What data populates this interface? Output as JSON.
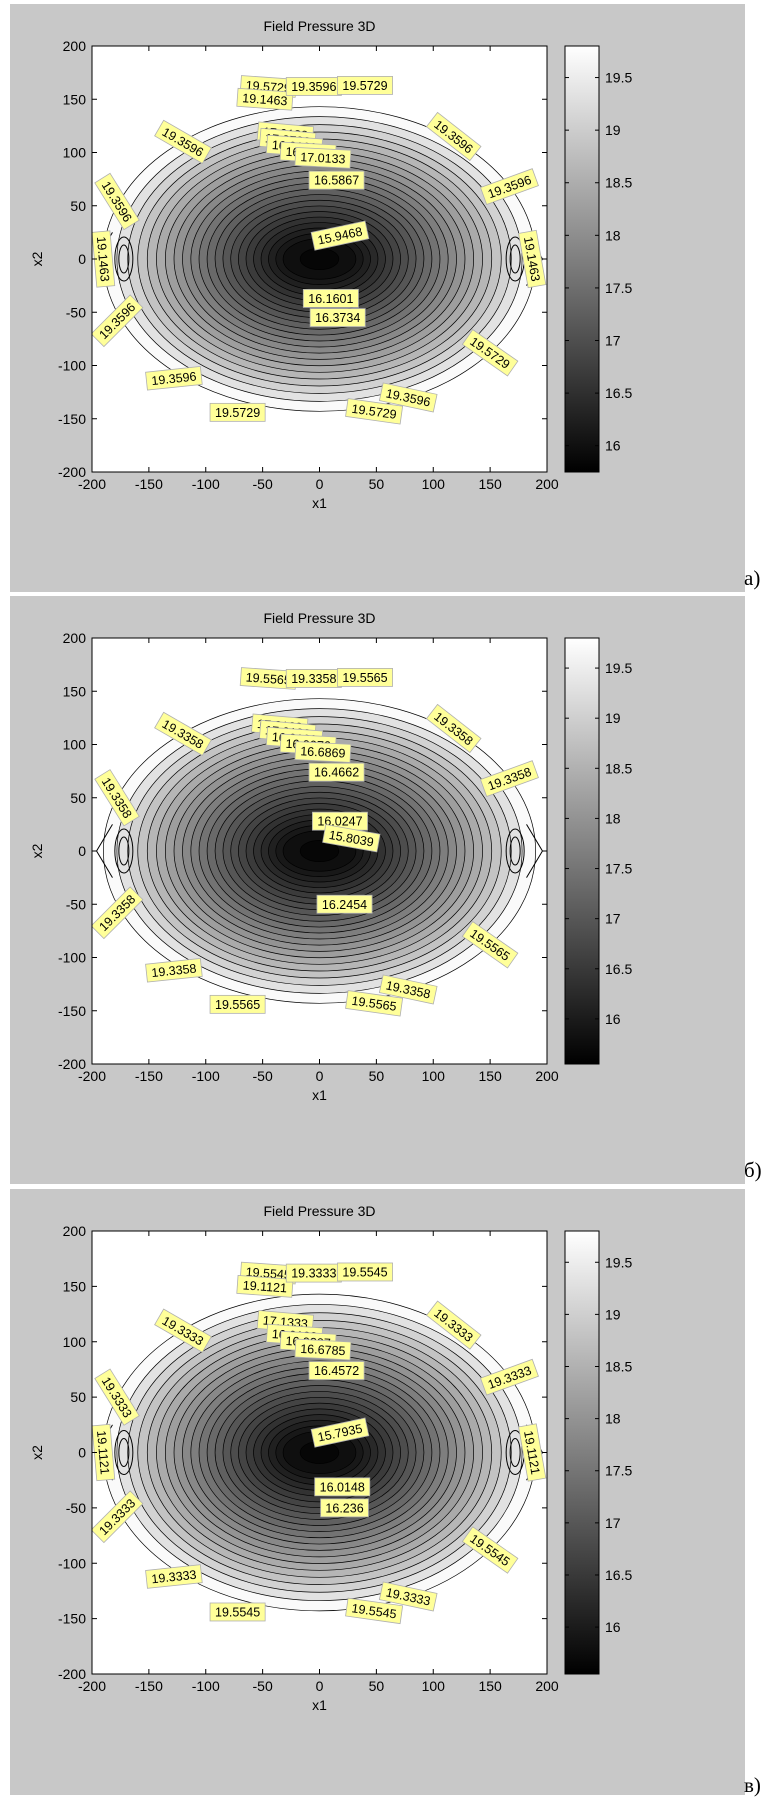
{
  "chart_data": [
    {
      "type": "contour",
      "title": "Field Pressure 3D",
      "xlabel": "x1",
      "ylabel": "x2",
      "xlim": [
        -200,
        200
      ],
      "ylim": [
        -200,
        200
      ],
      "xticks": [
        -200,
        -150,
        -100,
        -50,
        0,
        50,
        100,
        150,
        200
      ],
      "yticks": [
        -200,
        -150,
        -100,
        -50,
        0,
        50,
        100,
        150,
        200
      ],
      "colorbar": {
        "range": [
          15.75,
          19.8
        ],
        "ticks": [
          16,
          16.5,
          17,
          17.5,
          18,
          18.5,
          19,
          19.5
        ]
      },
      "min_level": 15.9468,
      "max_level": 19.5729,
      "panel_letter": "а)",
      "contour_labels": [
        {
          "text": "19.5729",
          "x": -45,
          "y": 162,
          "angle": -4
        },
        {
          "text": "19.1463",
          "x": -48,
          "y": 150,
          "angle": -4
        },
        {
          "text": "19.3596",
          "x": -5,
          "y": 162,
          "angle": 0
        },
        {
          "text": "19.5729",
          "x": 40,
          "y": 163,
          "angle": 0
        },
        {
          "text": "17.9133",
          "x": -30,
          "y": 118,
          "angle": -5
        },
        {
          "text": "17.3733",
          "x": -28,
          "y": 112,
          "angle": -5
        },
        {
          "text": "16.9133",
          "x": -22,
          "y": 106,
          "angle": -4
        },
        {
          "text": "16.8133",
          "x": -10,
          "y": 100,
          "angle": -3
        },
        {
          "text": "17.0133",
          "x": 3,
          "y": 95,
          "angle": -3
        },
        {
          "text": "16.5867",
          "x": 15,
          "y": 74,
          "angle": 0
        },
        {
          "text": "15.9468",
          "x": 18,
          "y": 22,
          "angle": 12
        },
        {
          "text": "16.1601",
          "x": 10,
          "y": -37,
          "angle": 0
        },
        {
          "text": "16.3734",
          "x": 16,
          "y": -55,
          "angle": 0
        },
        {
          "text": "19.3596",
          "x": -120,
          "y": 110,
          "angle": -30
        },
        {
          "text": "19.3596",
          "x": 118,
          "y": 115,
          "angle": -38
        },
        {
          "text": "19.3596",
          "x": 167,
          "y": 68,
          "angle": 20
        },
        {
          "text": "19.3596",
          "x": -178,
          "y": 54,
          "angle": -58
        },
        {
          "text": "19.1463",
          "x": -190,
          "y": 0,
          "angle": -85
        },
        {
          "text": "19.1463",
          "x": 187,
          "y": 0,
          "angle": -80
        },
        {
          "text": "19.3596",
          "x": -178,
          "y": -58,
          "angle": 45
        },
        {
          "text": "19.5729",
          "x": 150,
          "y": -88,
          "angle": -35
        },
        {
          "text": "19.3596",
          "x": -128,
          "y": -112,
          "angle": 6
        },
        {
          "text": "19.3596",
          "x": 78,
          "y": -130,
          "angle": -12
        },
        {
          "text": "19.5729",
          "x": -72,
          "y": -144,
          "angle": 0
        },
        {
          "text": "19.5729",
          "x": 48,
          "y": -143,
          "angle": -8
        }
      ]
    },
    {
      "type": "contour",
      "title": "Field Pressure 3D",
      "xlabel": "x1",
      "ylabel": "x2",
      "xlim": [
        -200,
        200
      ],
      "ylim": [
        -200,
        200
      ],
      "xticks": [
        -200,
        -150,
        -100,
        -50,
        0,
        50,
        100,
        150,
        200
      ],
      "yticks": [
        -200,
        -150,
        -100,
        -50,
        0,
        50,
        100,
        150,
        200
      ],
      "colorbar": {
        "range": [
          15.55,
          19.8
        ],
        "ticks": [
          16,
          16.5,
          17,
          17.5,
          18,
          18.5,
          19,
          19.5
        ]
      },
      "min_level": 15.8039,
      "max_level": 19.5565,
      "panel_letter": "б)",
      "contour_labels": [
        {
          "text": "19.5565",
          "x": -45,
          "y": 162,
          "angle": -4
        },
        {
          "text": "19.3358",
          "x": -5,
          "y": 162,
          "angle": 0
        },
        {
          "text": "19.5565",
          "x": 40,
          "y": 163,
          "angle": 0
        },
        {
          "text": "17.2133",
          "x": -35,
          "y": 118,
          "angle": -5
        },
        {
          "text": "17.0133",
          "x": -28,
          "y": 112,
          "angle": -5
        },
        {
          "text": "16.9133",
          "x": -22,
          "y": 106,
          "angle": -4
        },
        {
          "text": "16.9076",
          "x": -10,
          "y": 100,
          "angle": -3
        },
        {
          "text": "16.6869",
          "x": 3,
          "y": 93,
          "angle": -3
        },
        {
          "text": "16.4662",
          "x": 15,
          "y": 74,
          "angle": 0
        },
        {
          "text": "16.0247",
          "x": 18,
          "y": 28,
          "angle": 0
        },
        {
          "text": "15.8039",
          "x": 28,
          "y": 12,
          "angle": -10
        },
        {
          "text": "16.2454",
          "x": 22,
          "y": -50,
          "angle": 0
        },
        {
          "text": "19.3358",
          "x": -120,
          "y": 110,
          "angle": -30
        },
        {
          "text": "19.3358",
          "x": 118,
          "y": 115,
          "angle": -38
        },
        {
          "text": "19.3358",
          "x": 167,
          "y": 68,
          "angle": 20
        },
        {
          "text": "19.3358",
          "x": -178,
          "y": 50,
          "angle": -58
        },
        {
          "text": "19.3358",
          "x": -178,
          "y": -58,
          "angle": 45
        },
        {
          "text": "19.5565",
          "x": 150,
          "y": -88,
          "angle": -35
        },
        {
          "text": "19.3358",
          "x": -128,
          "y": -112,
          "angle": 6
        },
        {
          "text": "19.3358",
          "x": 78,
          "y": -130,
          "angle": -12
        },
        {
          "text": "19.5565",
          "x": -72,
          "y": -144,
          "angle": 0
        },
        {
          "text": "19.5565",
          "x": 48,
          "y": -143,
          "angle": -8
        }
      ]
    },
    {
      "type": "contour",
      "title": "Field Pressure 3D",
      "xlabel": "x1",
      "ylabel": "x2",
      "xlim": [
        -200,
        200
      ],
      "ylim": [
        -200,
        200
      ],
      "xticks": [
        -200,
        -150,
        -100,
        -50,
        0,
        50,
        100,
        150,
        200
      ],
      "yticks": [
        -200,
        -150,
        -100,
        -50,
        0,
        50,
        100,
        150,
        200
      ],
      "colorbar": {
        "range": [
          15.55,
          19.8
        ],
        "ticks": [
          16,
          16.5,
          17,
          17.5,
          18,
          18.5,
          19,
          19.5
        ]
      },
      "min_level": 15.7935,
      "max_level": 19.5545,
      "panel_letter": "в)",
      "contour_labels": [
        {
          "text": "19.5545",
          "x": -45,
          "y": 162,
          "angle": -4
        },
        {
          "text": "19.1121",
          "x": -48,
          "y": 150,
          "angle": -4
        },
        {
          "text": "19.3333",
          "x": -5,
          "y": 162,
          "angle": 0
        },
        {
          "text": "19.5545",
          "x": 40,
          "y": 163,
          "angle": 0
        },
        {
          "text": "17.1333",
          "x": -30,
          "y": 118,
          "angle": -5
        },
        {
          "text": "16.9133",
          "x": -22,
          "y": 106,
          "angle": -4
        },
        {
          "text": "16.9207",
          "x": -10,
          "y": 100,
          "angle": -3
        },
        {
          "text": "16.6785",
          "x": 3,
          "y": 93,
          "angle": -3
        },
        {
          "text": "16.4572",
          "x": 15,
          "y": 74,
          "angle": 0
        },
        {
          "text": "15.7935",
          "x": 18,
          "y": 18,
          "angle": 12
        },
        {
          "text": "16.0148",
          "x": 20,
          "y": -31,
          "angle": 0
        },
        {
          "text": "16.236",
          "x": 22,
          "y": -50,
          "angle": 0
        },
        {
          "text": "19.3333",
          "x": -120,
          "y": 110,
          "angle": -30
        },
        {
          "text": "19.3333",
          "x": 118,
          "y": 115,
          "angle": -38
        },
        {
          "text": "19.3333",
          "x": 167,
          "y": 68,
          "angle": 20
        },
        {
          "text": "19.3333",
          "x": -178,
          "y": 50,
          "angle": -58
        },
        {
          "text": "19.1121",
          "x": -190,
          "y": 0,
          "angle": -85
        },
        {
          "text": "19.1121",
          "x": 187,
          "y": 0,
          "angle": -80
        },
        {
          "text": "19.3333",
          "x": -178,
          "y": -58,
          "angle": 45
        },
        {
          "text": "19.5545",
          "x": 150,
          "y": -88,
          "angle": -35
        },
        {
          "text": "19.3333",
          "x": -128,
          "y": -112,
          "angle": 6
        },
        {
          "text": "19.3333",
          "x": 78,
          "y": -130,
          "angle": -12
        },
        {
          "text": "19.5545",
          "x": -72,
          "y": -144,
          "angle": 0
        },
        {
          "text": "19.5545",
          "x": 48,
          "y": -143,
          "angle": -8
        }
      ]
    }
  ]
}
